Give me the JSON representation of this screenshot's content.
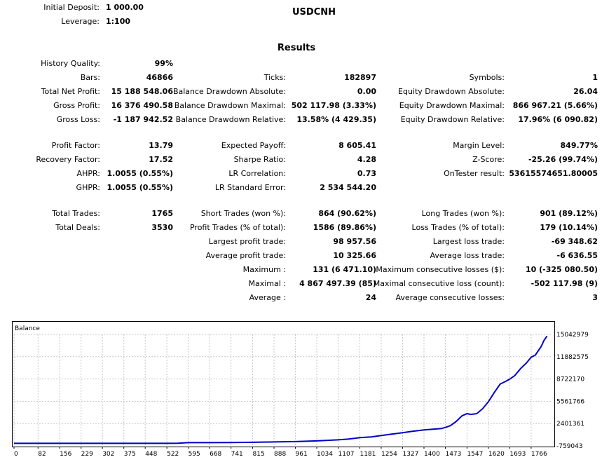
{
  "header": {
    "initial_deposit_label": "Initial Deposit:",
    "initial_deposit_value": "1 000.00",
    "leverage_label": "Leverage:",
    "leverage_value": "1:100",
    "symbol": "USDCNH",
    "results_title": "Results"
  },
  "col1": [
    {
      "label": "History Quality:",
      "value": "99%"
    },
    {
      "label": "Bars:",
      "value": "46866"
    },
    {
      "label": "Total Net Profit:",
      "value": "15 188 548.06"
    },
    {
      "label": "Gross Profit:",
      "value": "16 376 490.58"
    },
    {
      "label": "Gross Loss:",
      "value": "-1 187 942.52"
    },
    {
      "label": "Profit Factor:",
      "value": "13.79"
    },
    {
      "label": "Recovery Factor:",
      "value": "17.52"
    },
    {
      "label": "AHPR:",
      "value": "1.0055 (0.55%)"
    },
    {
      "label": "GHPR:",
      "value": "1.0055 (0.55%)"
    },
    {
      "label": "Total Trades:",
      "value": "1765"
    },
    {
      "label": "Total Deals:",
      "value": "3530"
    }
  ],
  "col2": [
    {
      "label": "Ticks:",
      "value": "182897"
    },
    {
      "label": "Balance Drawdown Absolute:",
      "value": "0.00"
    },
    {
      "label": "Balance Drawdown Maximal:",
      "value": "502 117.98 (3.33%)"
    },
    {
      "label": "Balance Drawdown Relative:",
      "value": "13.58% (4 429.35)"
    },
    {
      "label": "Expected Payoff:",
      "value": "8 605.41"
    },
    {
      "label": "Sharpe Ratio:",
      "value": "4.28"
    },
    {
      "label": "LR Correlation:",
      "value": "0.73"
    },
    {
      "label": "LR Standard Error:",
      "value": "2 534 544.20"
    },
    {
      "label": "Short Trades (won %):",
      "value": "864 (90.62%)"
    },
    {
      "label": "Profit Trades (% of total):",
      "value": "1586 (89.86%)"
    },
    {
      "label": "Largest profit trade:",
      "value": "98 957.56"
    },
    {
      "label": "Average profit trade:",
      "value": "10 325.66"
    },
    {
      "label": "Maximum :",
      "value": "131 (6 471.10)"
    },
    {
      "label": "Maximal :",
      "value": "4 867 497.39 (85)"
    },
    {
      "label": "Average :",
      "value": "24"
    }
  ],
  "col3": [
    {
      "label": "Symbols:",
      "value": "1"
    },
    {
      "label": "Equity Drawdown Absolute:",
      "value": "26.04"
    },
    {
      "label": "Equity Drawdown Maximal:",
      "value": "866 967.21 (5.66%)"
    },
    {
      "label": "Equity Drawdown Relative:",
      "value": "17.96% (6 090.82)"
    },
    {
      "label": "Margin Level:",
      "value": "849.77%"
    },
    {
      "label": "Z-Score:",
      "value": "-25.26 (99.74%)"
    },
    {
      "label": "OnTester result:",
      "value": "53615574651.80005"
    },
    {
      "label": "Long Trades (won %):",
      "value": "901 (89.12%)"
    },
    {
      "label": "Loss Trades (% of total):",
      "value": "179 (10.14%)"
    },
    {
      "label": "Largest loss trade:",
      "value": "-69 348.62"
    },
    {
      "label": "Average loss trade:",
      "value": "-6 636.55"
    },
    {
      "label": "Maximum consecutive losses ($):",
      "value": "10 (-325 080.50)"
    },
    {
      "label": "Maximal consecutive loss (count):",
      "value": "-502 117.98 (9)"
    },
    {
      "label": "Average consecutive losses:",
      "value": "3"
    }
  ],
  "chart_data": {
    "type": "line",
    "title": "Balance",
    "xlabel": "",
    "ylabel": "",
    "x_ticks": [
      "0",
      "82",
      "156",
      "229",
      "302",
      "375",
      "448",
      "522",
      "595",
      "668",
      "741",
      "815",
      "888",
      "961",
      "1034",
      "1107",
      "1181",
      "1254",
      "1327",
      "1400",
      "1473",
      "1547",
      "1620",
      "1693",
      "1766"
    ],
    "y_ticks": [
      "15042979",
      "11882575",
      "8722170",
      "5561766",
      "2401361",
      "-759043"
    ],
    "ylim": [
      -759043,
      15042979
    ],
    "xlim": [
      0,
      1838
    ],
    "grid": true,
    "line_color": "#0000c8",
    "series": [
      {
        "x": [
          0,
          82,
          156,
          229,
          302,
          375,
          448,
          522,
          560,
          595,
          668,
          741,
          815,
          888,
          961,
          1034,
          1107,
          1140,
          1181,
          1220,
          1254,
          1290,
          1327,
          1360,
          1400,
          1430,
          1460,
          1473,
          1490,
          1510,
          1530,
          1547,
          1560,
          1580,
          1600,
          1620,
          1640,
          1660,
          1680,
          1693,
          1710,
          1730,
          1750,
          1766,
          1780,
          1790,
          1800,
          1810,
          1820
        ],
        "y": [
          -400000,
          -400000,
          -400000,
          -400000,
          -400000,
          -400000,
          -400000,
          -400000,
          -380000,
          -300000,
          -300000,
          -280000,
          -250000,
          -200000,
          -150000,
          -50000,
          100000,
          200000,
          400000,
          500000,
          700000,
          900000,
          1100000,
          1300000,
          1500000,
          1600000,
          1700000,
          1850000,
          2100000,
          2700000,
          3500000,
          3800000,
          3700000,
          3800000,
          4500000,
          5500000,
          6800000,
          8000000,
          8400000,
          8700000,
          9200000,
          10200000,
          11000000,
          11800000,
          12100000,
          12700000,
          13300000,
          14200000,
          14800000
        ]
      }
    ]
  }
}
